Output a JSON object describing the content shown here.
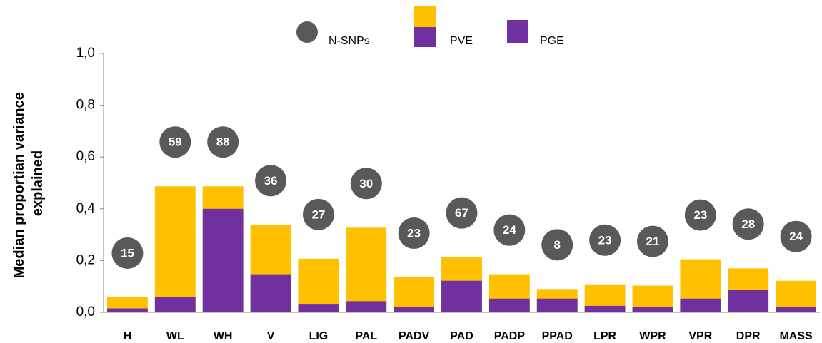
{
  "chart_data": {
    "type": "bar",
    "y_label": [
      "Median proportian variance",
      "explained"
    ],
    "categories": [
      "H",
      "WL",
      "WH",
      "V",
      "LIG",
      "PAL",
      "PADV",
      "PAD",
      "PADP",
      "PPAD",
      "LPR",
      "WPR",
      "VPR",
      "DPR",
      "MASS"
    ],
    "series": [
      {
        "name": "PVE",
        "color": "#ffc000",
        "values": [
          0.058,
          0.487,
          0.487,
          0.338,
          0.207,
          0.327,
          0.135,
          0.213,
          0.147,
          0.09,
          0.108,
          0.103,
          0.205,
          0.17,
          0.122
        ]
      },
      {
        "name": "PGE",
        "color": "#7030a0",
        "values": [
          0.015,
          0.058,
          0.4,
          0.147,
          0.03,
          0.043,
          0.022,
          0.122,
          0.053,
          0.053,
          0.025,
          0.022,
          0.053,
          0.087,
          0.02
        ]
      },
      {
        "name": "N-SNPs",
        "color": "#595959",
        "values": [
          15,
          59,
          88,
          36,
          27,
          30,
          23,
          67,
          24,
          8,
          23,
          21,
          23,
          28,
          24
        ]
      }
    ],
    "ylim": [
      0,
      1
    ],
    "yticks": [
      {
        "value": 0,
        "label": "0,0"
      },
      {
        "value": 0.2,
        "label": "0,2"
      },
      {
        "value": 0.4,
        "label": "0,4"
      },
      {
        "value": 0.6,
        "label": "0,6"
      },
      {
        "value": 0.8,
        "label": "0,8"
      },
      {
        "value": 1,
        "label": "1,0"
      }
    ],
    "grid": false
  }
}
